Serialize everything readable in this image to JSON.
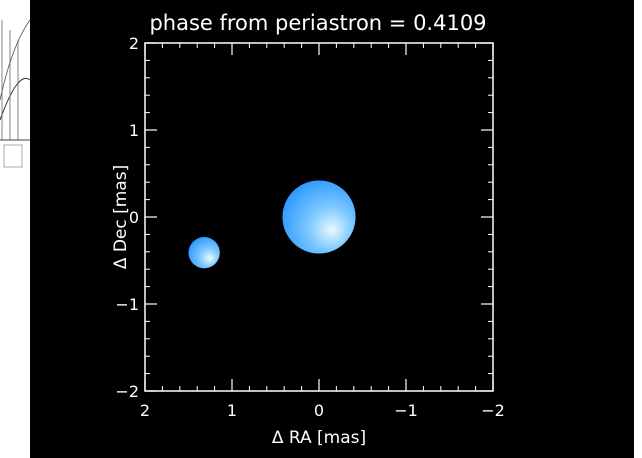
{
  "chart_data": {
    "type": "scatter",
    "title": "phase from periastron = 0.4109",
    "xlabel": "Δ RA [mas]",
    "ylabel": "Δ Dec [mas]",
    "xlim": [
      2,
      -2
    ],
    "ylim": [
      -2,
      2
    ],
    "x_ticks": [
      2,
      1,
      0,
      -1,
      -2
    ],
    "y_ticks": [
      2,
      1,
      0,
      -1,
      -2
    ],
    "x_tick_labels": [
      "2",
      "1",
      "0",
      "−1",
      "−2"
    ],
    "y_tick_labels": [
      "2",
      "1",
      "0",
      "−1",
      "−2"
    ],
    "minor_step": 0.2,
    "grid": false,
    "legend": "none",
    "stars": [
      {
        "x": 0.0,
        "y": 0.0,
        "radius": 0.42
      },
      {
        "x": 1.32,
        "y": -0.41,
        "radius": 0.18
      }
    ],
    "colors": {
      "background": "#000000",
      "axes": "#ffffff",
      "star_light": "#eaf8ff",
      "star_mid": "#7cc8ff",
      "star_edge": "#1f8fff"
    }
  }
}
